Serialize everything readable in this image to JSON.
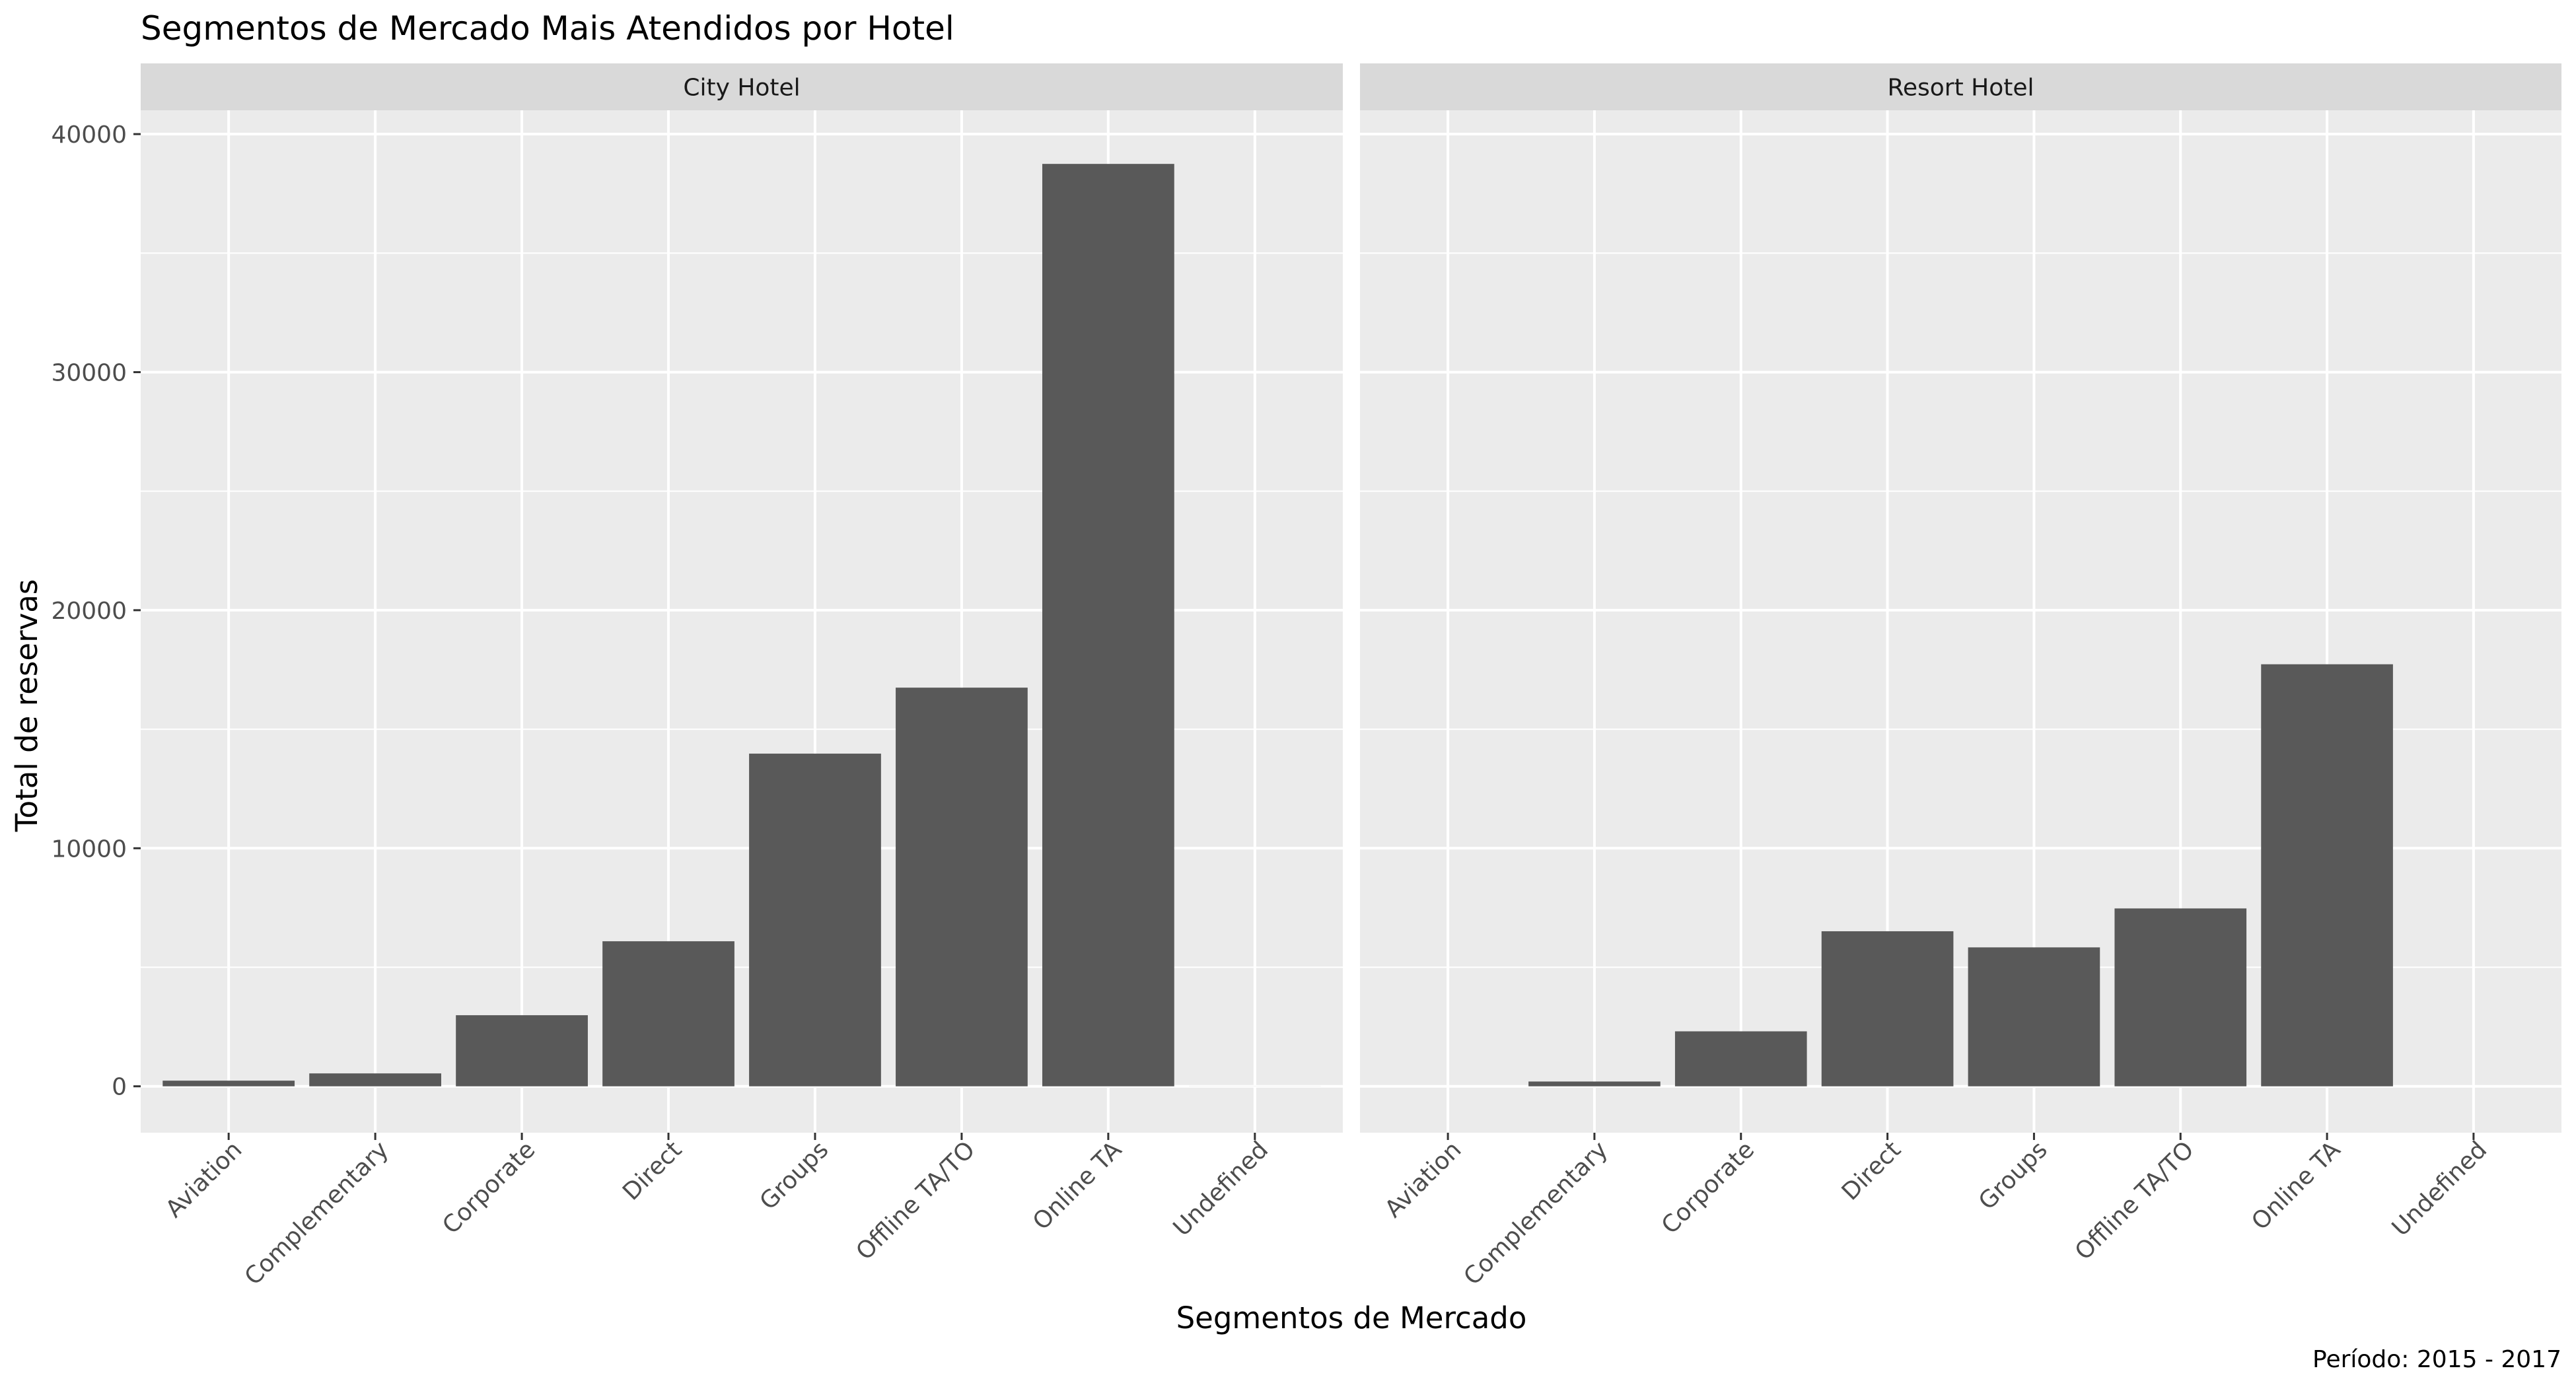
{
  "chart_data": {
    "type": "bar",
    "title": "Segmentos de Mercado Mais Atendidos por Hotel",
    "xlabel": "Segmentos de Mercado",
    "ylabel": "Total de reservas",
    "caption": "Período: 2015 - 2017",
    "categories": [
      "Aviation",
      "Complementary",
      "Corporate",
      "Direct",
      "Groups",
      "Offline TA/TO",
      "Online TA",
      "Undefined"
    ],
    "y_ticks": [
      0,
      10000,
      20000,
      30000,
      40000
    ],
    "y_tick_labels": [
      "0",
      "10000",
      "20000",
      "30000",
      "40000"
    ],
    "ylim": [
      -1950,
      41000
    ],
    "grid": true,
    "bar_color": "#595959",
    "panel_background": "#ebebeb",
    "strip_background": "#d9d9d9",
    "facets": [
      {
        "name": "City Hotel",
        "values": [
          237,
          542,
          2986,
          6093,
          13975,
          16747,
          38748,
          2
        ]
      },
      {
        "name": "Resort Hotel",
        "values": [
          0,
          201,
          2309,
          6513,
          5836,
          7472,
          17729,
          0
        ]
      }
    ]
  }
}
